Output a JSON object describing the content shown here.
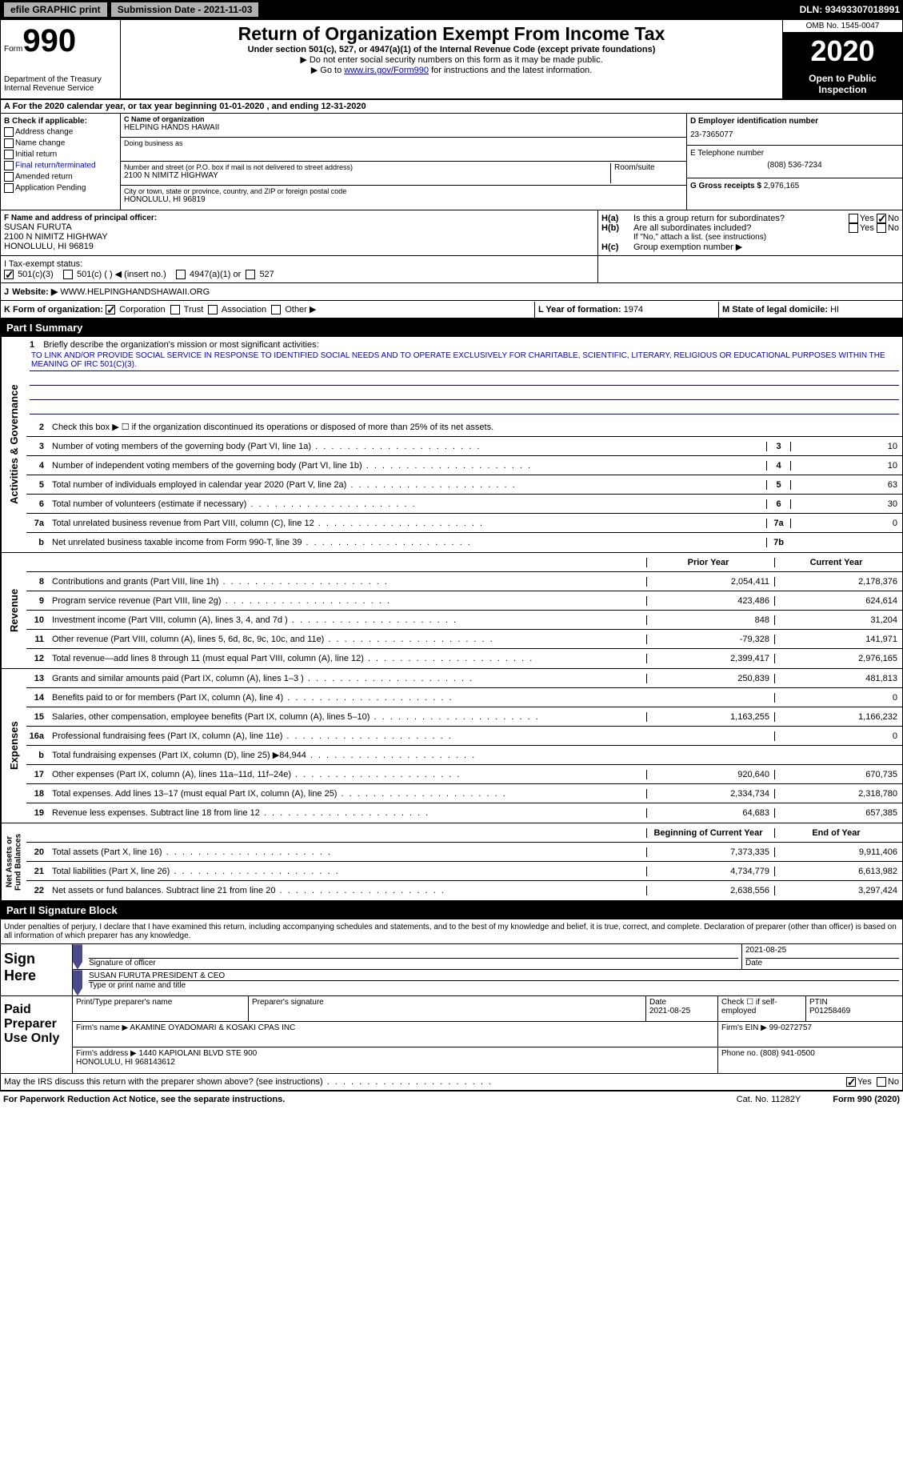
{
  "top_bar": {
    "efile_btn": "efile GRAPHIC print",
    "submission_label": "Submission Date - 2021-11-03",
    "dln": "DLN: 93493307018991"
  },
  "header": {
    "form_word": "Form",
    "form_num": "990",
    "dept": "Department of the Treasury\nInternal Revenue Service",
    "title": "Return of Organization Exempt From Income Tax",
    "subtitle": "Under section 501(c), 527, or 4947(a)(1) of the Internal Revenue Code (except private foundations)",
    "note1": "▶ Do not enter social security numbers on this form as it may be made public.",
    "note2_pre": "▶ Go to ",
    "note2_link": "www.irs.gov/Form990",
    "note2_post": " for instructions and the latest information.",
    "omb": "OMB No. 1545-0047",
    "year": "2020",
    "inspection": "Open to Public\nInspection"
  },
  "section_a": "A For the 2020 calendar year, or tax year beginning 01-01-2020   , and ending 12-31-2020",
  "checks": {
    "label": "B Check if applicable:",
    "address": "Address change",
    "name": "Name change",
    "initial": "Initial return",
    "final": "Final return/terminated",
    "amended": "Amended return",
    "app_pending": "Application Pending"
  },
  "org": {
    "c_label": "C Name of organization",
    "name": "HELPING HANDS HAWAII",
    "dba": "Doing business as",
    "addr_label": "Number and street (or P.O. box if mail is not delivered to street address)",
    "suite_label": "Room/suite",
    "address": "2100 N NIMITZ HIGHWAY",
    "city_label": "City or town, state or province, country, and ZIP or foreign postal code",
    "city": "HONOLULU, HI  96819"
  },
  "right_col": {
    "d_label": "D Employer identification number",
    "ein": "23-7365077",
    "e_label": "E Telephone number",
    "phone": "(808) 536-7234",
    "g_label": "G Gross receipts $",
    "gross": "2,976,165"
  },
  "officer": {
    "f_label": "F Name and address of principal officer:",
    "name": "SUSAN FURUTA",
    "addr1": "2100 N NIMITZ HIGHWAY",
    "addr2": "HONOLULU, HI  96819"
  },
  "group": {
    "ha_label": "H(a)",
    "ha_text": "Is this a group return for subordinates?",
    "hb_label": "H(b)",
    "hb_text": "Are all subordinates included?",
    "hb_note": "If \"No,\" attach a list. (see instructions)",
    "hc_label": "H(c)",
    "hc_text": "Group exemption number ▶",
    "yes": "Yes",
    "no": "No"
  },
  "tax_status": {
    "i_label": "I",
    "text": "Tax-exempt status:",
    "c3": "501(c)(3)",
    "c": "501(c) (  ) ◀ (insert no.)",
    "a1": "4947(a)(1) or",
    "s527": "527"
  },
  "website": {
    "j_label": "J",
    "label": "Website: ▶",
    "url": "WWW.HELPINGHANDSHAWAII.ORG"
  },
  "form_org": {
    "k_label": "K Form of organization:",
    "corp": "Corporation",
    "trust": "Trust",
    "assoc": "Association",
    "other": "Other ▶",
    "l_label": "L Year of formation:",
    "l_val": "1974",
    "m_label": "M State of legal domicile:",
    "m_val": "HI"
  },
  "part1": {
    "header": "Part I     Summary",
    "line1_label": "1",
    "line1_text": "Briefly describe the organization's mission or most significant activities:",
    "mission": "TO LINK AND/OR PROVIDE SOCIAL SERVICE IN RESPONSE TO IDENTIFIED SOCIAL NEEDS AND TO OPERATE EXCLUSIVELY FOR CHARITABLE, SCIENTIFIC, LITERARY, RELIGIOUS OR EDUCATIONAL PURPOSES WITHIN THE MEANING OF IRC 501(C)(3).",
    "line2_text": "Check this box ▶ ☐  if the organization discontinued its operations or disposed of more than 25% of its net assets.",
    "governance_label": "Activities & Governance",
    "revenue_label": "Revenue",
    "expenses_label": "Expenses",
    "netassets_label": "Net Assets or\nFund Balances",
    "rows_gov": [
      {
        "ln": "3",
        "desc": "Number of voting members of the governing body (Part VI, line 1a)",
        "num": "3",
        "val": "10"
      },
      {
        "ln": "4",
        "desc": "Number of independent voting members of the governing body (Part VI, line 1b)",
        "num": "4",
        "val": "10"
      },
      {
        "ln": "5",
        "desc": "Total number of individuals employed in calendar year 2020 (Part V, line 2a)",
        "num": "5",
        "val": "63"
      },
      {
        "ln": "6",
        "desc": "Total number of volunteers (estimate if necessary)",
        "num": "6",
        "val": "30"
      },
      {
        "ln": "7a",
        "desc": "Total unrelated business revenue from Part VIII, column (C), line 12",
        "num": "7a",
        "val": "0"
      },
      {
        "ln": "b",
        "desc": "Net unrelated business taxable income from Form 990-T, line 39",
        "num": "7b",
        "val": ""
      }
    ],
    "prior_year": "Prior Year",
    "current_year": "Current Year",
    "rows_rev": [
      {
        "ln": "8",
        "desc": "Contributions and grants (Part VIII, line 1h)",
        "py": "2,054,411",
        "cy": "2,178,376"
      },
      {
        "ln": "9",
        "desc": "Program service revenue (Part VIII, line 2g)",
        "py": "423,486",
        "cy": "624,614"
      },
      {
        "ln": "10",
        "desc": "Investment income (Part VIII, column (A), lines 3, 4, and 7d )",
        "py": "848",
        "cy": "31,204"
      },
      {
        "ln": "11",
        "desc": "Other revenue (Part VIII, column (A), lines 5, 6d, 8c, 9c, 10c, and 11e)",
        "py": "-79,328",
        "cy": "141,971"
      },
      {
        "ln": "12",
        "desc": "Total revenue—add lines 8 through 11 (must equal Part VIII, column (A), line 12)",
        "py": "2,399,417",
        "cy": "2,976,165"
      }
    ],
    "rows_exp": [
      {
        "ln": "13",
        "desc": "Grants and similar amounts paid (Part IX, column (A), lines 1–3 )",
        "py": "250,839",
        "cy": "481,813"
      },
      {
        "ln": "14",
        "desc": "Benefits paid to or for members (Part IX, column (A), line 4)",
        "py": "",
        "cy": "0"
      },
      {
        "ln": "15",
        "desc": "Salaries, other compensation, employee benefits (Part IX, column (A), lines 5–10)",
        "py": "1,163,255",
        "cy": "1,166,232"
      },
      {
        "ln": "16a",
        "desc": "Professional fundraising fees (Part IX, column (A), line 11e)",
        "py": "",
        "cy": "0"
      },
      {
        "ln": "b",
        "desc": "Total fundraising expenses (Part IX, column (D), line 25) ▶84,944",
        "py": "shaded",
        "cy": "shaded"
      },
      {
        "ln": "17",
        "desc": "Other expenses (Part IX, column (A), lines 11a–11d, 11f–24e)",
        "py": "920,640",
        "cy": "670,735"
      },
      {
        "ln": "18",
        "desc": "Total expenses. Add lines 13–17 (must equal Part IX, column (A), line 25)",
        "py": "2,334,734",
        "cy": "2,318,780"
      },
      {
        "ln": "19",
        "desc": "Revenue less expenses. Subtract line 18 from line 12",
        "py": "64,683",
        "cy": "657,385"
      }
    ],
    "beg_year": "Beginning of Current Year",
    "end_year": "End of Year",
    "rows_net": [
      {
        "ln": "20",
        "desc": "Total assets (Part X, line 16)",
        "py": "7,373,335",
        "cy": "9,911,406"
      },
      {
        "ln": "21",
        "desc": "Total liabilities (Part X, line 26)",
        "py": "4,734,779",
        "cy": "6,613,982"
      },
      {
        "ln": "22",
        "desc": "Net assets or fund balances. Subtract line 21 from line 20",
        "py": "2,638,556",
        "cy": "3,297,424"
      }
    ]
  },
  "part2": {
    "header": "Part II     Signature Block",
    "intro": "Under penalties of perjury, I declare that I have examined this return, including accompanying schedules and statements, and to the best of my knowledge and belief, it is true, correct, and complete. Declaration of preparer (other than officer) is based on all information of which preparer has any knowledge.",
    "sign_here": "Sign\nHere",
    "sig_officer": "Signature of officer",
    "sig_date": "2021-08-25",
    "date_label": "Date",
    "officer_name": "SUSAN FURUTA PRESIDENT & CEO",
    "type_name": "Type or print name and title",
    "paid_label": "Paid\nPreparer\nUse Only",
    "prep_name_label": "Print/Type preparer's name",
    "prep_sig_label": "Preparer's signature",
    "prep_date_label": "Date",
    "prep_date": "2021-08-25",
    "check_self": "Check ☐ if self-employed",
    "ptin_label": "PTIN",
    "ptin": "P01258469",
    "firm_name_label": "Firm's name    ▶",
    "firm_name": "AKAMINE OYADOMARI & KOSAKI CPAS INC",
    "firm_ein_label": "Firm's EIN ▶",
    "firm_ein": "99-0272757",
    "firm_addr_label": "Firm's address ▶",
    "firm_addr": "1440 KAPIOLANI BLVD STE 900\nHONOLULU, HI  968143612",
    "phone_label": "Phone no.",
    "phone": "(808) 941-0500",
    "may_irs": "May the IRS discuss this return with the preparer shown above? (see instructions)"
  },
  "footer": {
    "paperwork": "For Paperwork Reduction Act Notice, see the separate instructions.",
    "cat": "Cat. No. 11282Y",
    "form": "Form 990 (2020)"
  }
}
